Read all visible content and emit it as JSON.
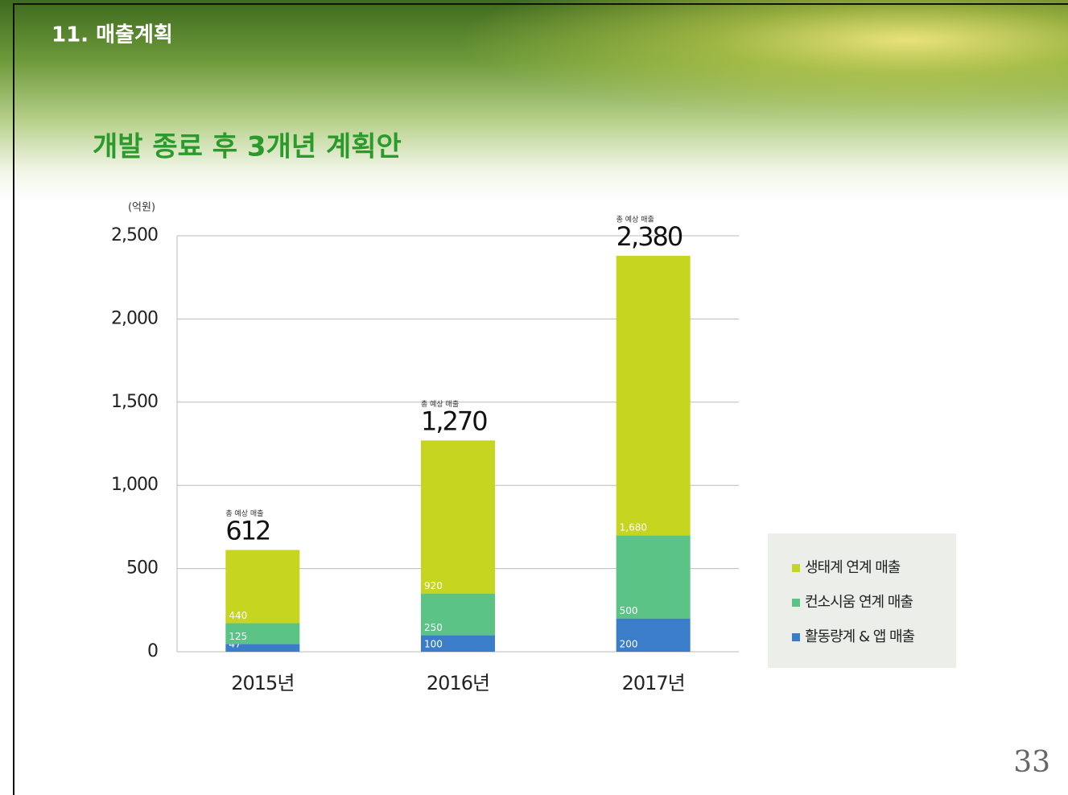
{
  "slide": {
    "section": "11. 매출계획",
    "title": "개발 종료 후 3개년 계획안",
    "page_number": "33"
  },
  "chart_data": {
    "type": "stacked_bar",
    "y_label": "(억원)",
    "categories": [
      "2015년",
      "2016년",
      "2017년"
    ],
    "series": [
      {
        "name": "활동량계 & 앱 매출",
        "color": "#3b7dc9",
        "values": [
          47,
          100,
          200
        ]
      },
      {
        "name": "컨소시움 연계 매출",
        "color": "#5cc387",
        "values": [
          125,
          250,
          500
        ]
      },
      {
        "name": "생태계 연계 매출",
        "color": "#c6d520",
        "values": [
          440,
          920,
          1680
        ],
        "value_labels": [
          "440",
          "920",
          "1,680"
        ]
      }
    ],
    "total_caption": "총 예상 매출",
    "totals": [
      {
        "value": 612,
        "label": "612"
      },
      {
        "value": 1270,
        "label": "1,270"
      },
      {
        "value": 2380,
        "label": "2,380"
      }
    ],
    "ylim": [
      0,
      2500
    ],
    "yticks": [
      0,
      500,
      {
        "value": 1000,
        "label": "1,000"
      },
      {
        "value": 1500,
        "label": "1,500"
      },
      {
        "value": 2000,
        "label": "2,000"
      },
      {
        "value": 2500,
        "label": "2,500"
      }
    ],
    "grid": true,
    "legend": "right"
  }
}
